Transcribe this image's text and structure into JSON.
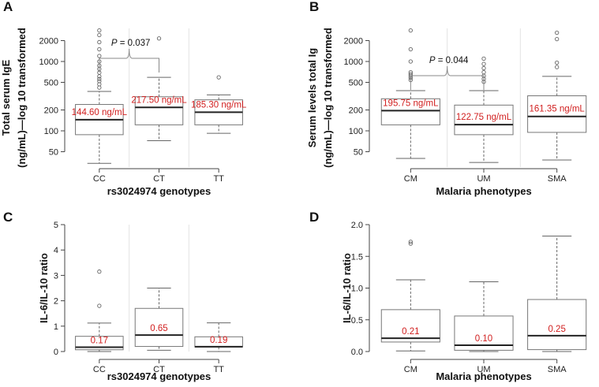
{
  "chart_data": [
    {
      "panel": "A",
      "type": "box",
      "log_scale": true,
      "xlabel": "rs3024974 genotypes",
      "ylabel_lines": [
        "Total serum IgE",
        "(ng/mL)—log 10 transformed"
      ],
      "yticks": [
        50,
        100,
        200,
        500,
        1000,
        2000
      ],
      "ylim": [
        30,
        3000
      ],
      "categories": [
        "CC",
        "CT",
        "TT"
      ],
      "boxes": [
        {
          "name": "CC",
          "min": 34,
          "q1": 88,
          "median": 144.6,
          "q3": 240,
          "max": 370,
          "outliers": [
            420,
            470,
            520,
            560,
            610,
            690,
            780,
            870,
            1000,
            1200,
            1500,
            1900,
            2400,
            2800
          ]
        },
        {
          "name": "CT",
          "min": 72,
          "q1": 122,
          "median": 217.5,
          "q3": 310,
          "max": 590,
          "outliers": [
            2150
          ]
        },
        {
          "name": "TT",
          "min": 92,
          "q1": 122,
          "median": 185.3,
          "q3": 280,
          "max": 330,
          "outliers": [
            590
          ]
        }
      ],
      "median_labels": [
        "144.60 ng/mL",
        "217.50 ng/mL",
        "185.30 ng/mL"
      ],
      "bracket": {
        "from": "CC",
        "to": "CT",
        "p_label": "P",
        "p_value": " = 0.037"
      },
      "grid_vertical": true
    },
    {
      "panel": "B",
      "type": "box",
      "log_scale": true,
      "xlabel": "Malaria phenotypes",
      "ylabel_lines": [
        "Serum levels total Ig",
        "(ng/mL)—log 10 transformed"
      ],
      "yticks": [
        50,
        100,
        200,
        500,
        1000,
        2000
      ],
      "ylim": [
        30,
        3000
      ],
      "categories": [
        "CM",
        "UM",
        "SMA"
      ],
      "boxes": [
        {
          "name": "CM",
          "min": 40,
          "q1": 122,
          "median": 195.75,
          "q3": 290,
          "max": 380,
          "outliers": [
            540,
            580,
            620,
            660,
            700,
            1000,
            1500,
            2800
          ]
        },
        {
          "name": "UM",
          "min": 35,
          "q1": 88,
          "median": 122.75,
          "q3": 235,
          "max": 380,
          "outliers": [
            510,
            560,
            620,
            700,
            800,
            920,
            1100
          ]
        },
        {
          "name": "SMA",
          "min": 38,
          "q1": 95,
          "median": 161.35,
          "q3": 320,
          "max": 610,
          "outliers": [
            830,
            960,
            2100,
            2600
          ]
        }
      ],
      "median_labels": [
        "195.75 ng/mL",
        "122.75 ng/mL",
        "161.35 ng/mL"
      ],
      "bracket": {
        "from": "CM",
        "to": "UM",
        "p_label": "P",
        "p_value": " = 0.044"
      },
      "grid_vertical": true
    },
    {
      "panel": "C",
      "type": "box",
      "log_scale": false,
      "xlabel": "rs3024974 genotypes",
      "ylabel_lines": [
        "IL-6/IL-10 ratio"
      ],
      "yticks": [
        0,
        1,
        2,
        3,
        4,
        5
      ],
      "ylim": [
        0,
        5
      ],
      "categories": [
        "CC",
        "CT",
        "TT"
      ],
      "boxes": [
        {
          "name": "CC",
          "min": 0.0,
          "q1": 0.07,
          "median": 0.17,
          "q3": 0.6,
          "max": 1.12,
          "outliers": [
            1.8,
            3.15
          ]
        },
        {
          "name": "CT",
          "min": 0.05,
          "q1": 0.2,
          "median": 0.65,
          "q3": 1.7,
          "max": 2.5,
          "outliers": []
        },
        {
          "name": "TT",
          "min": 0.0,
          "q1": 0.18,
          "median": 0.19,
          "q3": 0.58,
          "max": 1.13,
          "outliers": []
        }
      ],
      "median_labels": [
        "0.17",
        "0.65",
        "0.19"
      ],
      "grid_vertical": true
    },
    {
      "panel": "D",
      "type": "box",
      "log_scale": false,
      "xlabel": "Malaria phenotypes",
      "ylabel_lines": [
        "IL-6/IL-10 ratio"
      ],
      "yticks": [
        0.0,
        0.5,
        1.0,
        1.5,
        2.0
      ],
      "ytick_labels": [
        "0.0",
        "0.5",
        "1.0",
        "1.5",
        "2.0"
      ],
      "ylim": [
        0,
        2.0
      ],
      "categories": [
        "CM",
        "UM",
        "SMA"
      ],
      "boxes": [
        {
          "name": "CM",
          "min": 0.01,
          "q1": 0.15,
          "median": 0.21,
          "q3": 0.66,
          "max": 1.13,
          "outliers": [
            1.7,
            1.73
          ]
        },
        {
          "name": "UM",
          "min": 0.0,
          "q1": 0.02,
          "median": 0.1,
          "q3": 0.56,
          "max": 1.1,
          "outliers": []
        },
        {
          "name": "SMA",
          "min": 0.0,
          "q1": 0.03,
          "median": 0.25,
          "q3": 0.82,
          "max": 1.82,
          "outliers": []
        }
      ],
      "median_labels": [
        "0.21",
        "0.10",
        "0.25"
      ],
      "grid_vertical": false
    }
  ]
}
